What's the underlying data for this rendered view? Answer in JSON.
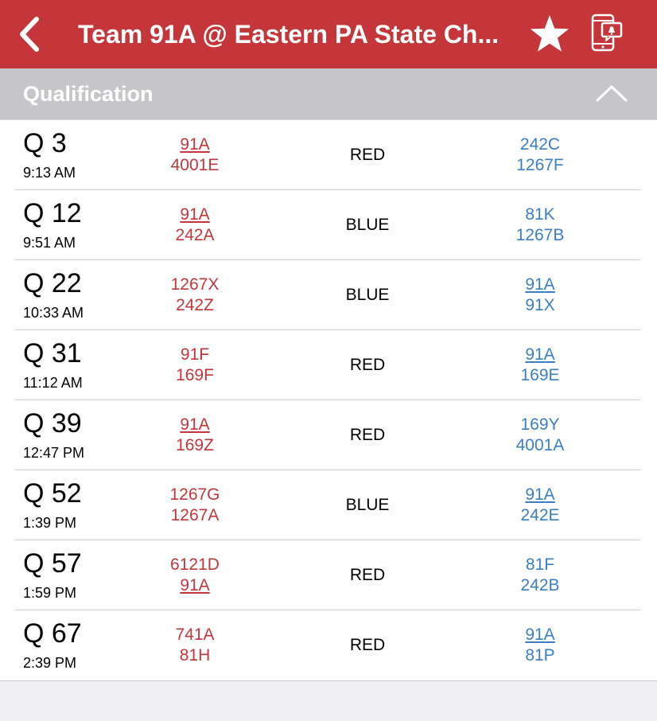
{
  "navbar": {
    "back_icon": "chevron-left-icon",
    "title": "Team 91A @ Eastern PA State Ch...",
    "favorite_icon": "star-icon",
    "notify_icon": "phone-notification-icon",
    "background_color": "#c4363a"
  },
  "section": {
    "title": "Qualification",
    "collapse_icon": "chevron-up-icon"
  },
  "colors": {
    "red_team": "#c4363a",
    "blue_team": "#3a7fc4"
  },
  "matches": [
    {
      "name": "Q 3",
      "time": "9:13 AM",
      "red": [
        "91A",
        "4001E"
      ],
      "alliance": "RED",
      "blue": [
        "242C",
        "1267F"
      ]
    },
    {
      "name": "Q 12",
      "time": "9:51 AM",
      "red": [
        "91A",
        "242A"
      ],
      "alliance": "BLUE",
      "blue": [
        "81K",
        "1267B"
      ]
    },
    {
      "name": "Q 22",
      "time": "10:33 AM",
      "red": [
        "1267X",
        "242Z"
      ],
      "alliance": "BLUE",
      "blue": [
        "91A",
        "91X"
      ]
    },
    {
      "name": "Q 31",
      "time": "11:12 AM",
      "red": [
        "91F",
        "169F"
      ],
      "alliance": "RED",
      "blue": [
        "91A",
        "169E"
      ]
    },
    {
      "name": "Q 39",
      "time": "12:47 PM",
      "red": [
        "91A",
        "169Z"
      ],
      "alliance": "RED",
      "blue": [
        "169Y",
        "4001A"
      ]
    },
    {
      "name": "Q 52",
      "time": "1:39 PM",
      "red": [
        "1267G",
        "1267A"
      ],
      "alliance": "BLUE",
      "blue": [
        "91A",
        "242E"
      ]
    },
    {
      "name": "Q 57",
      "time": "1:59 PM",
      "red": [
        "6121D",
        "91A"
      ],
      "alliance": "RED",
      "blue": [
        "81F",
        "242B"
      ]
    },
    {
      "name": "Q 67",
      "time": "2:39 PM",
      "red": [
        "741A",
        "81H"
      ],
      "alliance": "RED",
      "blue": [
        "91A",
        "81P"
      ]
    }
  ]
}
